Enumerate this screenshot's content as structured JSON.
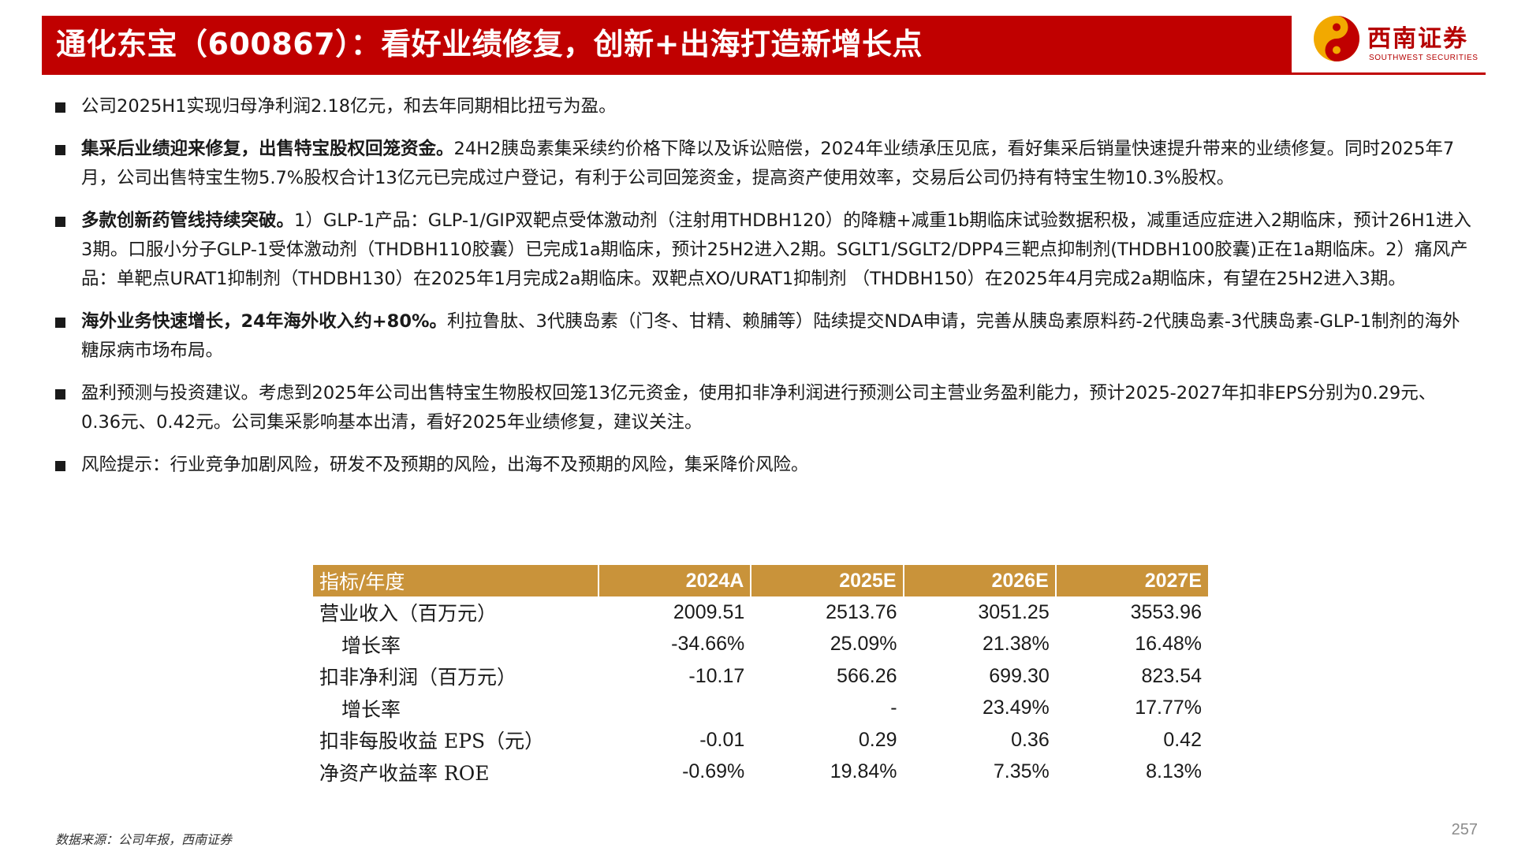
{
  "header": {
    "title": "通化东宝（600867）：看好业绩修复，创新+出海打造新增长点",
    "logo_cn": "西南证券",
    "logo_en": "SOUTHWEST SECURITIES",
    "bar_color": "#c00000"
  },
  "bullets": [
    {
      "lead": "",
      "text": "公司2025H1实现归母净利润2.18亿元，和去年同期相比扭亏为盈。"
    },
    {
      "lead": "集采后业绩迎来修复，出售特宝股权回笼资金。",
      "text": "24H2胰岛素集采续约价格下降以及诉讼赔偿，2024年业绩承压见底，看好集采后销量快速提升带来的业绩修复。同时2025年7月，公司出售特宝生物5.7%股权合计13亿元已完成过户登记，有利于公司回笼资金，提高资产使用效率，交易后公司仍持有特宝生物10.3%股权。"
    },
    {
      "lead": "多款创新药管线持续突破。",
      "text": "1）GLP-1产品：GLP-1/GIP双靶点受体激动剂（注射用THDBH120）的降糖+减重1b期临床试验数据积极，减重适应症进入2期临床，预计26H1进入3期。口服小分子GLP-1受体激动剂（THDBH110胶囊）已完成1a期临床，预计25H2进入2期。SGLT1/SGLT2/DPP4三靶点抑制剂(THDBH100胶囊)正在1a期临床。2）痛风产品：单靶点URAT1抑制剂（THDBH130）在2025年1月完成2a期临床。双靶点XO/URAT1抑制剂 （THDBH150）在2025年4月完成2a期临床，有望在25H2进入3期。"
    },
    {
      "lead": "海外业务快速增长，24年海外收入约+80%。",
      "text": "利拉鲁肽、3代胰岛素（门冬、甘精、赖脯等）陆续提交NDA申请，完善从胰岛素原料药-2代胰岛素-3代胰岛素-GLP-1制剂的海外糖尿病市场布局。"
    },
    {
      "lead": "",
      "text": "盈利预测与投资建议。考虑到2025年公司出售特宝生物股权回笼13亿元资金，使用扣非净利润进行预测公司主营业务盈利能力，预计2025-2027年扣非EPS分别为0.29元、0.36元、0.42元。公司集采影响基本出清，看好2025年业绩修复，建议关注。"
    },
    {
      "lead": "",
      "text": "风险提示：行业竞争加剧风险，研发不及预期的风险，出海不及预期的风险，集采降价风险。"
    }
  ],
  "table": {
    "header_color": "#c9933a",
    "columns": [
      "指标/年度",
      "2024A",
      "2025E",
      "2026E",
      "2027E"
    ],
    "rows": [
      {
        "label": "营业收入（百万元）",
        "indent": false,
        "values": [
          "2009.51",
          "2513.76",
          "3051.25",
          "3553.96"
        ]
      },
      {
        "label": "增长率",
        "indent": true,
        "values": [
          "-34.66%",
          "25.09%",
          "21.38%",
          "16.48%"
        ]
      },
      {
        "label": "扣非净利润（百万元）",
        "indent": false,
        "values": [
          "-10.17",
          "566.26",
          "699.30",
          "823.54"
        ]
      },
      {
        "label": "增长率",
        "indent": true,
        "values": [
          "",
          "-",
          "23.49%",
          "17.77%"
        ]
      },
      {
        "label": "扣非每股收益 EPS（元）",
        "indent": false,
        "values": [
          "-0.01",
          "0.29",
          "0.36",
          "0.42"
        ]
      },
      {
        "label": "净资产收益率 ROE",
        "indent": false,
        "values": [
          "-0.69%",
          "19.84%",
          "7.35%",
          "8.13%"
        ]
      }
    ]
  },
  "footer": {
    "source": "数据来源：公司年报，西南证券",
    "page_number": "257"
  }
}
